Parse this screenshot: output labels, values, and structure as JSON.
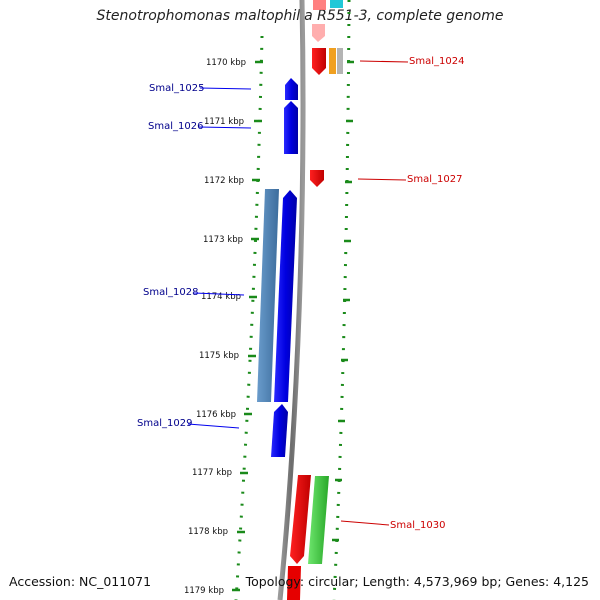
{
  "title": "Stenotrophomonas maltophilia R551-3, complete genome",
  "footer": {
    "accession": "Accession: NC_011071",
    "topology": "Topology: circular; Length: 4,573,969 bp; Genes: 4,125"
  },
  "colors": {
    "forward_gene": "#0000ee",
    "forward_gene_alt": "#4f82b4",
    "reverse_gene": "#e60000",
    "reverse_gene_alt": "#3cc83c",
    "misc_orange": "#f0a020",
    "misc_gray": "#b4b4b4",
    "misc_cyan": "#20c8d8",
    "backbone": "#808080",
    "tick": "#1a8a1a",
    "forward_label": "#00008b",
    "reverse_label": "#cc0000"
  },
  "ruler": [
    {
      "label": "1170 kbp"
    },
    {
      "label": "1171 kbp"
    },
    {
      "label": "1172 kbp"
    },
    {
      "label": "1173 kbp"
    },
    {
      "label": "1174 kbp"
    },
    {
      "label": "1175 kbp"
    },
    {
      "label": "1176 kbp"
    },
    {
      "label": "1177 kbp"
    },
    {
      "label": "1178 kbp"
    },
    {
      "label": "1179 kbp"
    }
  ],
  "forward_labels": [
    {
      "text": "Smal_1025"
    },
    {
      "text": "Smal_1026"
    },
    {
      "text": "Smal_1028"
    },
    {
      "text": "Smal_1029"
    }
  ],
  "reverse_labels": [
    {
      "text": "Smal_1024"
    },
    {
      "text": "Smal_1027"
    },
    {
      "text": "Smal_1030"
    }
  ]
}
